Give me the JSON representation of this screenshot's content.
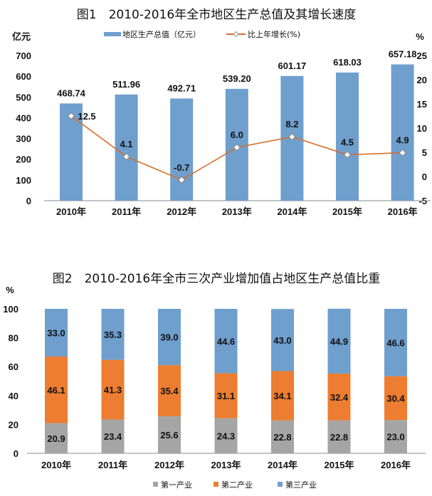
{
  "chart_data": [
    {
      "type": "bar+line",
      "title": "图1　2010-2016年全市地区生产总值及其增长速度",
      "ylabel": "亿元",
      "y2label": "%",
      "categories": [
        "2010年",
        "2011年",
        "2012年",
        "2013年",
        "2014年",
        "2015年",
        "2016年"
      ],
      "ylim": [
        0,
        700
      ],
      "yticks": [
        "0",
        "100",
        "200",
        "300",
        "400",
        "500",
        "600",
        "700"
      ],
      "y2lim": [
        -5,
        25
      ],
      "y2ticks": [
        "-5",
        "0",
        "5",
        "10",
        "15",
        "20",
        "25"
      ],
      "series": [
        {
          "name": "地区生产总值（亿元）",
          "type": "bar",
          "color": "#6f9fcd",
          "values": [
            468.74,
            511.96,
            492.71,
            539.2,
            601.17,
            618.03,
            657.18
          ],
          "labels": [
            "468.74",
            "511.96",
            "492.71",
            "539.20",
            "601.17",
            "618.03",
            "657.18"
          ]
        },
        {
          "name": "比上年增长(%)",
          "type": "line",
          "color": "#d4702b",
          "values": [
            12.5,
            4.1,
            -0.7,
            6.0,
            8.2,
            4.5,
            4.9
          ],
          "labels": [
            "12.5",
            "4.1",
            "-0.7",
            "6.0",
            "8.2",
            "4.5",
            "4.9"
          ]
        }
      ],
      "legend": "top-center",
      "grid": false
    },
    {
      "type": "stacked-bar",
      "title": "图2　2010-2016年全市三次产业增加值占地区生产总值比重",
      "ylabel": "%",
      "categories": [
        "2010年",
        "2011年",
        "2012年",
        "2013年",
        "2014年",
        "2015年",
        "2016年"
      ],
      "ylim": [
        0,
        100
      ],
      "yticks": [
        "0",
        "20",
        "40",
        "60",
        "80",
        "100"
      ],
      "series": [
        {
          "name": "第一产业",
          "color": "#a5a5a5",
          "values": [
            20.9,
            23.4,
            25.6,
            24.3,
            22.8,
            22.8,
            23.0
          ],
          "labels": [
            "20.9",
            "23.4",
            "25.6",
            "24.3",
            "22.8",
            "22.8",
            "23.0"
          ]
        },
        {
          "name": "第二产业",
          "color": "#ed7d31",
          "values": [
            46.1,
            41.3,
            35.4,
            31.1,
            34.1,
            32.4,
            30.4
          ],
          "labels": [
            "46.1",
            "41.3",
            "35.4",
            "31.1",
            "34.1",
            "32.4",
            "30.4"
          ]
        },
        {
          "name": "第三产业",
          "color": "#6f9fcd",
          "values": [
            33.0,
            35.3,
            39.0,
            44.6,
            43.0,
            44.9,
            46.6
          ],
          "labels": [
            "33.0",
            "35.3",
            "39.0",
            "44.6",
            "43.0",
            "44.9",
            "46.6"
          ]
        }
      ],
      "legend": "bottom",
      "grid": false
    }
  ]
}
